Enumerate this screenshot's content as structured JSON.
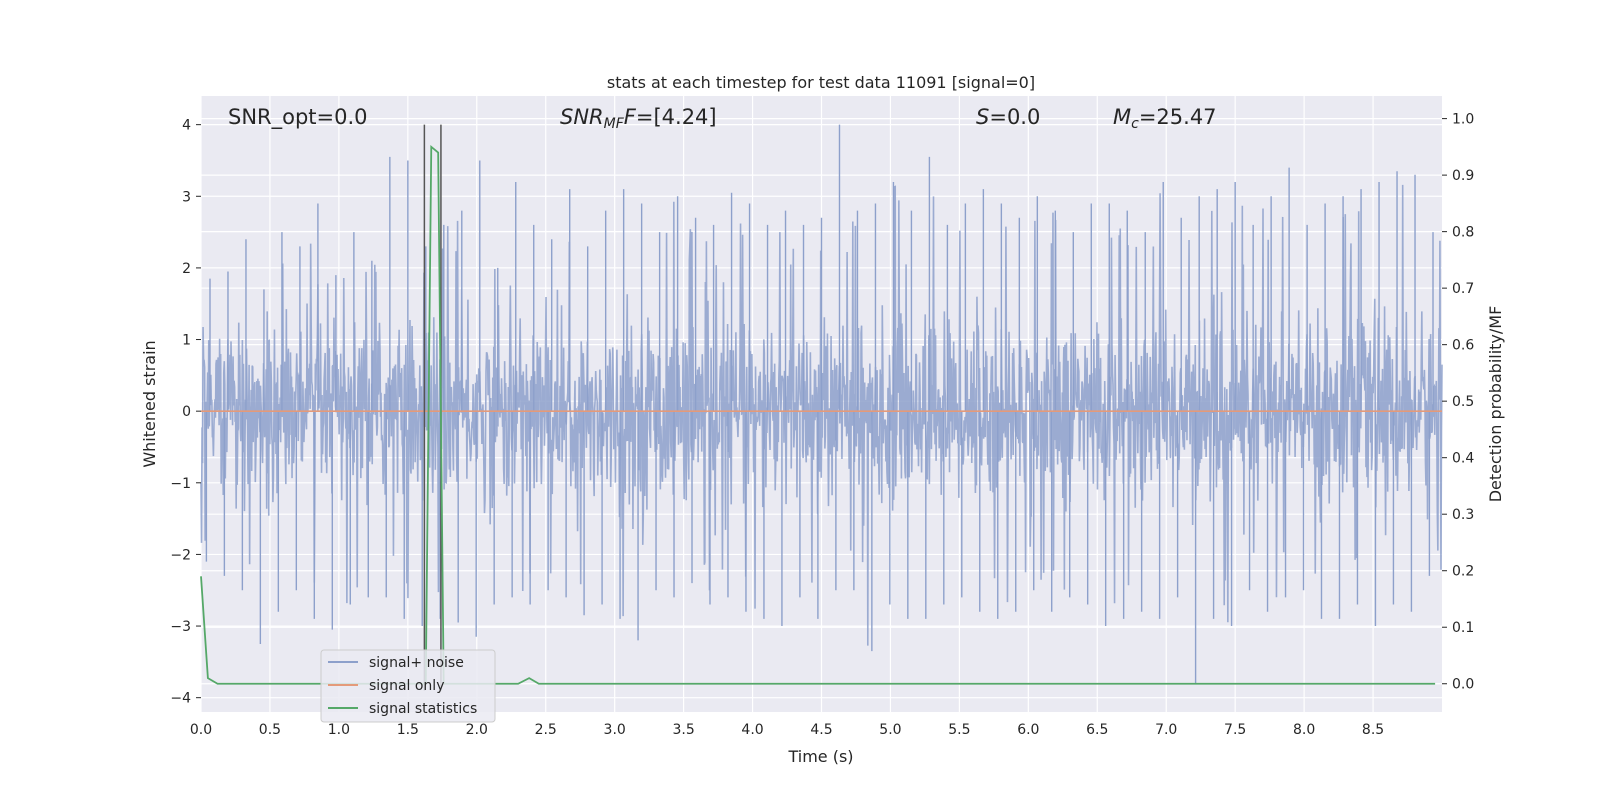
{
  "chart_data": {
    "type": "line",
    "title": "stats at each timestep for test data 11091 [signal=0]",
    "xlabel": "Time (s)",
    "ylabel": "Whitened strain",
    "ylabel_right": "Detection probability/MF",
    "xlim": [
      0.0,
      9.0
    ],
    "ylim": [
      -4.2,
      4.4
    ],
    "ylim_right": [
      -0.05,
      1.04
    ],
    "x_ticks": [
      "0.0",
      "0.5",
      "1.0",
      "1.5",
      "2.0",
      "2.5",
      "3.0",
      "3.5",
      "4.0",
      "4.5",
      "5.0",
      "5.5",
      "6.0",
      "6.5",
      "7.0",
      "7.5",
      "8.0",
      "8.5"
    ],
    "y_ticks": [
      "−4",
      "−3",
      "−2",
      "−1",
      "0",
      "1",
      "2",
      "3",
      "4"
    ],
    "y_ticks_right": [
      "0.0",
      "0.1",
      "0.2",
      "0.3",
      "0.4",
      "0.5",
      "0.6",
      "0.7",
      "0.8",
      "0.9",
      "1.0"
    ],
    "grid": true,
    "legend_placement": "lower-left",
    "annotations": {
      "snr_opt": "SNR_opt=0.0",
      "snr_mf_main": "SNR",
      "snr_mf_sub": "MF",
      "snr_mf_value": "=[4.24]",
      "s_main": "S",
      "s_value": "=0.0",
      "mc_main": "M",
      "mc_sub": "c",
      "mc_value": "=25.47"
    },
    "vertical_lines_x": [
      1.62,
      1.74
    ],
    "series": [
      {
        "name": "signal+ noise",
        "color": "#8da0cb",
        "axis": "left",
        "description_values": "whitened strain noise, approx. Gaussian",
        "envelope_p": [
          1.85,
          1.95,
          2.4,
          1.7,
          2.5,
          2.3,
          2.9,
          1.9,
          2.5,
          2.1,
          3.55,
          3.5,
          2.3,
          2.6,
          2.8,
          3.5,
          2.0,
          3.2,
          2.6,
          2.4,
          3.1,
          2.3,
          2.8,
          3.1,
          2.9,
          2.5,
          3.0,
          2.7,
          2.6,
          3.05,
          2.9,
          2.6,
          2.8,
          2.6,
          2.7,
          4.0,
          2.8,
          2.9,
          3.2,
          2.8,
          3.55,
          2.6,
          2.9,
          3.1,
          2.9,
          2.7,
          3.0,
          2.8,
          2.5,
          2.9,
          2.9,
          2.8,
          2.5,
          3.2,
          2.7,
          3.0,
          3.1,
          3.2,
          2.6,
          3.0,
          3.4,
          2.6,
          2.9,
          3.0,
          3.1,
          3.2,
          3.35,
          3.3,
          2.5
        ],
        "envelope_n": [
          -2.1,
          -2.3,
          -2.5,
          -3.25,
          -2.8,
          -2.5,
          -2.9,
          -3.05,
          -2.7,
          -2.6,
          -2.6,
          -2.9,
          -3.0,
          -2.9,
          -2.95,
          -3.15,
          -2.7,
          -2.6,
          -2.7,
          -2.5,
          -2.6,
          -2.85,
          -2.7,
          -2.9,
          -3.2,
          -2.5,
          -2.6,
          -2.4,
          -2.7,
          -2.6,
          -2.8,
          -2.9,
          -3.0,
          -2.6,
          -2.9,
          -2.5,
          -2.5,
          -3.35,
          -2.7,
          -2.9,
          -2.9,
          -2.7,
          -2.6,
          -2.8,
          -2.9,
          -2.8,
          -2.5,
          -2.8,
          -2.6,
          -2.7,
          -3.0,
          -2.9,
          -2.8,
          -2.9,
          -2.6,
          -3.8,
          -2.9,
          -3.0,
          -2.5,
          -2.8,
          -2.6,
          -2.5,
          -2.9,
          -2.9,
          -2.7,
          -3.0,
          -2.7,
          -2.8,
          -2.3
        ]
      },
      {
        "name": "signal only",
        "color": "#e49a7a",
        "axis": "left",
        "x": [
          0.0,
          9.0
        ],
        "y": [
          0.0,
          0.0
        ]
      },
      {
        "name": "signal statistics",
        "color": "#55a868",
        "axis": "right",
        "x": [
          0.0,
          0.05,
          0.12,
          0.2,
          0.5,
          1.0,
          1.5,
          1.6,
          1.63,
          1.67,
          1.72,
          1.76,
          1.8,
          2.0,
          2.3,
          2.38,
          2.45,
          2.6,
          3.0,
          4.0,
          5.0,
          6.0,
          7.0,
          8.0,
          8.95
        ],
        "y": [
          0.19,
          0.01,
          0.0,
          0.0,
          0.0,
          0.0,
          0.0,
          0.0,
          0.0,
          0.95,
          0.94,
          0.0,
          0.0,
          0.0,
          0.0,
          0.01,
          0.0,
          0.0,
          0.0,
          0.0,
          0.0,
          0.0,
          0.0,
          0.0,
          0.0
        ]
      }
    ]
  }
}
